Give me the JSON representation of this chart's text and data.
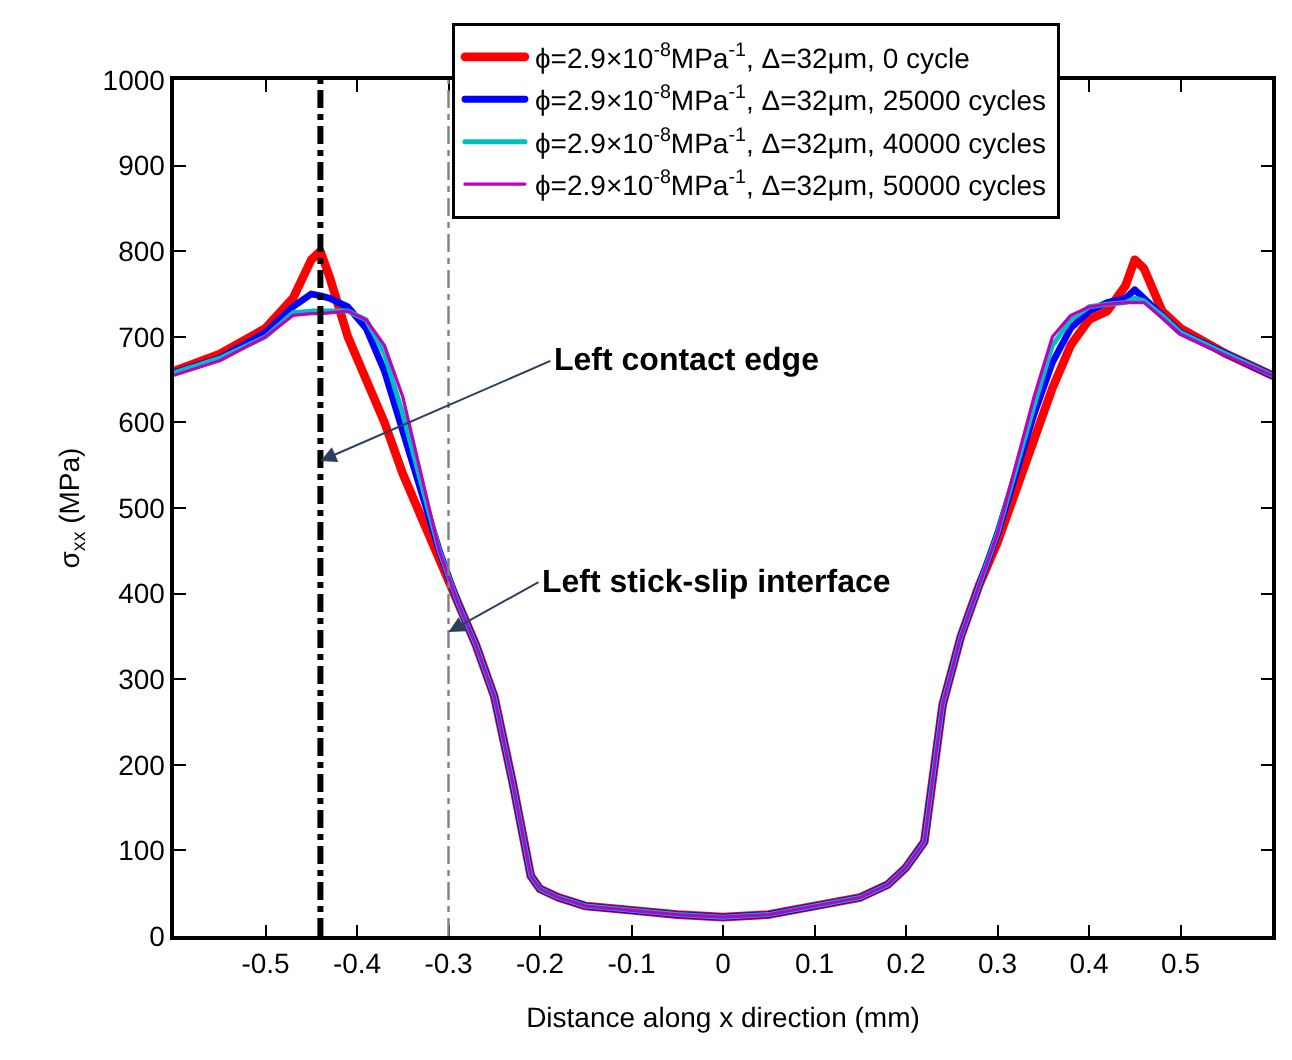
{
  "chart_data": {
    "type": "line",
    "xlabel": "Distance along x direction (mm)",
    "ylabel": "σ$_{xx}$ (MPa)",
    "x": [
      -0.6,
      -0.55,
      -0.5,
      -0.47,
      -0.45,
      -0.44,
      -0.43,
      -0.41,
      -0.39,
      -0.37,
      -0.35,
      -0.33,
      -0.31,
      -0.29,
      -0.27,
      -0.25,
      -0.23,
      -0.21,
      -0.2,
      -0.18,
      -0.15,
      -0.1,
      -0.05,
      0,
      0.05,
      0.1,
      0.15,
      0.18,
      0.2,
      0.22,
      0.24,
      0.26,
      0.28,
      0.3,
      0.32,
      0.34,
      0.36,
      0.38,
      0.4,
      0.42,
      0.44,
      0.45,
      0.46,
      0.48,
      0.5,
      0.55,
      0.6
    ],
    "series": [
      {
        "name": "ϕ=2.9×10$^{-8}$MPa$^{-1}$, Δ=32μm, 0 cycle",
        "color": "#ff0000",
        "values": [
          660,
          680,
          710,
          745,
          790,
          800,
          770,
          700,
          650,
          600,
          540,
          490,
          440,
          390,
          340,
          280,
          180,
          70,
          55,
          45,
          35,
          30,
          25,
          22,
          25,
          35,
          45,
          60,
          80,
          110,
          270,
          350,
          410,
          460,
          520,
          580,
          640,
          690,
          720,
          730,
          760,
          790,
          780,
          730,
          710,
          680,
          655
        ]
      },
      {
        "name": "ϕ=2.9×10$^{-8}$MPa$^{-1}$, Δ=32μm, 25000 cycles",
        "color": "#0000ff",
        "values": [
          658,
          675,
          705,
          735,
          750,
          748,
          745,
          735,
          710,
          660,
          590,
          520,
          450,
          390,
          340,
          280,
          180,
          70,
          55,
          45,
          35,
          30,
          25,
          22,
          25,
          35,
          45,
          60,
          80,
          110,
          270,
          350,
          410,
          470,
          540,
          610,
          670,
          710,
          730,
          740,
          745,
          755,
          745,
          725,
          705,
          680,
          655
        ]
      },
      {
        "name": "ϕ=2.9×10$^{-8}$MPa$^{-1}$, Δ=32μm, 40000 cycles",
        "color": "#00bfbf",
        "values": [
          658,
          675,
          700,
          728,
          730,
          730,
          730,
          730,
          720,
          680,
          610,
          530,
          450,
          390,
          340,
          280,
          180,
          70,
          55,
          45,
          35,
          30,
          25,
          22,
          25,
          35,
          45,
          60,
          80,
          110,
          270,
          350,
          410,
          470,
          545,
          620,
          690,
          720,
          735,
          738,
          740,
          745,
          742,
          725,
          705,
          680,
          655
        ]
      },
      {
        "name": "ϕ=2.9×10$^{-8}$MPa$^{-1}$, Δ=32μm, 50000 cycles",
        "color": "#bf00bf",
        "values": [
          655,
          672,
          700,
          725,
          727,
          727,
          728,
          730,
          720,
          690,
          630,
          540,
          450,
          390,
          340,
          280,
          180,
          70,
          55,
          45,
          35,
          30,
          25,
          22,
          25,
          35,
          45,
          60,
          80,
          110,
          270,
          350,
          410,
          470,
          550,
          630,
          700,
          725,
          735,
          738,
          740,
          740,
          740,
          722,
          703,
          678,
          655
        ]
      }
    ],
    "xlim": [
      -0.6,
      0.6
    ],
    "ylim": [
      0,
      1000
    ],
    "xticks": [
      -0.5,
      -0.4,
      -0.3,
      -0.2,
      -0.1,
      0,
      0.1,
      0.2,
      0.3,
      0.4,
      0.5
    ],
    "yticks": [
      0,
      100,
      200,
      300,
      400,
      500,
      600,
      700,
      800,
      900,
      1000
    ],
    "ref_lines": [
      {
        "axis": "x",
        "value": -0.44,
        "label": null,
        "color": "#000000",
        "line_style": "dashdot"
      },
      {
        "axis": "x",
        "value": -0.3,
        "label": null,
        "color": "#808080",
        "line_style": "dashdot"
      }
    ],
    "annotations": [
      {
        "text": "Left contact edge",
        "x": -0.44,
        "y": 555
      },
      {
        "text": "Left stick-slip interface",
        "x": -0.3,
        "y": 355
      }
    ],
    "grid": false,
    "legend": "top",
    "marker": "none",
    "line_style": "solid"
  }
}
